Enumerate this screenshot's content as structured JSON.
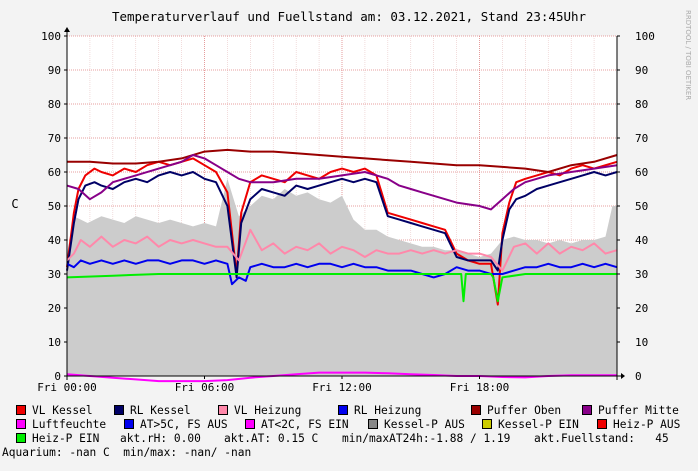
{
  "title": "Temperaturverlauf und Fuellstand am: 03.12.2021, Stand 23:45Uhr",
  "watermark": "RRDTOOL / TOBI OETIKER",
  "chart_data": {
    "type": "line",
    "ylabel": "C",
    "ylim": [
      0,
      100
    ],
    "yticks": [
      "0",
      "10",
      "20",
      "30",
      "40",
      "50",
      "60",
      "70",
      "80",
      "90",
      "100"
    ],
    "x_axis": "time (hours of 03.12.2021)",
    "xlim": [
      0,
      24
    ],
    "xticks": [
      {
        "t": 0,
        "label": "Fri 00:00"
      },
      {
        "t": 6,
        "label": "Fri 06:00"
      },
      {
        "t": 12,
        "label": "Fri 12:00"
      },
      {
        "t": 18,
        "label": "Fri 18:00"
      }
    ],
    "grid": true,
    "area": {
      "name": "Kessel-P AUS",
      "color": "#cccccc",
      "x": [
        0,
        0.3,
        0.6,
        0.9,
        1.2,
        1.5,
        2,
        2.5,
        3,
        3.5,
        4,
        4.5,
        5,
        5.5,
        6,
        6.5,
        7,
        7.5,
        8,
        8.5,
        9,
        9.5,
        10,
        10.5,
        11,
        11.5,
        12,
        12.5,
        13,
        13.5,
        14,
        14.5,
        15,
        15.5,
        16,
        16.5,
        17,
        17.5,
        18,
        18.5,
        19,
        19.5,
        20,
        20.5,
        21,
        21.5,
        22,
        22.5,
        23,
        23.5,
        23.8,
        24
      ],
      "values": [
        36,
        47,
        46,
        45,
        46,
        47,
        46,
        45,
        47,
        46,
        45,
        46,
        45,
        44,
        45,
        44,
        58,
        47,
        50,
        53,
        52,
        55,
        53,
        54,
        52,
        51,
        53,
        46,
        43,
        43,
        41,
        40,
        39,
        38,
        38,
        37,
        37,
        36,
        35,
        36,
        40,
        41,
        40,
        40,
        39,
        40,
        39,
        40,
        40,
        41,
        50,
        50
      ]
    },
    "series": [
      {
        "name": "VL Kessel",
        "color": "#ee0000",
        "x": [
          0,
          0.3,
          0.5,
          0.8,
          1.2,
          1.5,
          2,
          2.5,
          3,
          3.5,
          4,
          4.5,
          5,
          5.5,
          6,
          6.5,
          7,
          7.4,
          7.6,
          8,
          8.5,
          9,
          9.5,
          10,
          10.5,
          11,
          11.5,
          12,
          12.5,
          13,
          13.5,
          14,
          14.5,
          15,
          15.5,
          16,
          16.5,
          17,
          17.5,
          18,
          18.5,
          18.8,
          19,
          19.3,
          19.6,
          20,
          20.5,
          21,
          21.5,
          22,
          22.5,
          23,
          23.5,
          24
        ],
        "values": [
          32,
          48,
          55,
          59,
          61,
          60,
          59,
          61,
          60,
          62,
          63,
          62,
          63,
          64,
          62,
          60,
          54,
          30,
          48,
          57,
          59,
          58,
          57,
          60,
          59,
          58,
          60,
          61,
          60,
          61,
          59,
          48,
          47,
          46,
          45,
          44,
          43,
          36,
          34,
          33,
          33,
          21,
          42,
          51,
          57,
          58,
          59,
          60,
          59,
          61,
          62,
          61,
          62,
          63
        ]
      },
      {
        "name": "RL Kessel",
        "color": "#000066",
        "x": [
          0,
          0.3,
          0.5,
          0.8,
          1.2,
          1.5,
          2,
          2.5,
          3,
          3.5,
          4,
          4.5,
          5,
          5.5,
          6,
          6.5,
          7,
          7.4,
          7.6,
          8,
          8.5,
          9,
          9.5,
          10,
          10.5,
          11,
          11.5,
          12,
          12.5,
          13,
          13.5,
          14,
          14.5,
          15,
          15.5,
          16,
          16.5,
          17,
          17.5,
          18,
          18.5,
          18.8,
          19,
          19.3,
          19.6,
          20,
          20.5,
          21,
          21.5,
          22,
          22.5,
          23,
          23.5,
          24
        ],
        "values": [
          31,
          45,
          52,
          56,
          57,
          56,
          55,
          57,
          58,
          57,
          59,
          60,
          59,
          60,
          58,
          57,
          50,
          29,
          45,
          52,
          55,
          54,
          53,
          56,
          55,
          56,
          57,
          58,
          57,
          58,
          57,
          47,
          46,
          45,
          44,
          43,
          42,
          35,
          34,
          34,
          34,
          31,
          40,
          49,
          52,
          53,
          55,
          56,
          57,
          58,
          59,
          60,
          59,
          60
        ]
      },
      {
        "name": "VL Heizung",
        "color": "#ff88aa",
        "x": [
          0,
          0.3,
          0.6,
          1,
          1.5,
          2,
          2.5,
          3,
          3.5,
          4,
          4.5,
          5,
          5.5,
          6,
          6.5,
          7,
          7.5,
          8,
          8.5,
          9,
          9.5,
          10,
          10.5,
          11,
          11.5,
          12,
          12.5,
          13,
          13.5,
          14,
          14.5,
          15,
          15.5,
          16,
          16.5,
          17,
          17.5,
          18,
          18.5,
          19,
          19.5,
          20,
          20.5,
          21,
          21.5,
          22,
          22.5,
          23,
          23.5,
          24
        ],
        "values": [
          34,
          36,
          40,
          38,
          41,
          38,
          40,
          39,
          41,
          38,
          40,
          39,
          40,
          39,
          38,
          38,
          34,
          43,
          37,
          39,
          36,
          38,
          37,
          39,
          36,
          38,
          37,
          35,
          37,
          36,
          36,
          37,
          36,
          37,
          36,
          37,
          36,
          36,
          35,
          31,
          38,
          39,
          36,
          39,
          36,
          38,
          37,
          39,
          36,
          37
        ]
      },
      {
        "name": "RL Heizung",
        "color": "#0000ee",
        "x": [
          0,
          0.3,
          0.6,
          1,
          1.5,
          2,
          2.5,
          3,
          3.5,
          4,
          4.5,
          5,
          5.5,
          6,
          6.5,
          7,
          7.2,
          7.5,
          7.8,
          8,
          8.5,
          9,
          9.5,
          10,
          10.5,
          11,
          11.5,
          12,
          12.5,
          13,
          13.5,
          14,
          14.5,
          15,
          15.5,
          16,
          16.5,
          17,
          17.5,
          18,
          18.5,
          19,
          19.5,
          20,
          20.5,
          21,
          21.5,
          22,
          22.5,
          23,
          23.5,
          24
        ],
        "values": [
          33,
          32,
          34,
          33,
          34,
          33,
          34,
          33,
          34,
          34,
          33,
          34,
          34,
          33,
          34,
          33,
          27,
          29,
          28,
          32,
          33,
          32,
          32,
          33,
          32,
          33,
          33,
          32,
          33,
          32,
          32,
          31,
          31,
          31,
          30,
          29,
          30,
          32,
          31,
          31,
          30,
          30,
          31,
          32,
          32,
          33,
          32,
          32,
          33,
          32,
          33,
          32
        ]
      },
      {
        "name": "Puffer Oben",
        "color": "#990000",
        "x": [
          0,
          1,
          2,
          3,
          4,
          5,
          6,
          7,
          8,
          9,
          10,
          11,
          12,
          13,
          14,
          15,
          16,
          17,
          18,
          19,
          20,
          21,
          22,
          23,
          24
        ],
        "values": [
          63,
          63,
          62.5,
          62.5,
          63,
          64,
          66,
          66.5,
          66,
          66,
          65.5,
          65,
          64.5,
          64,
          63.5,
          63,
          62.5,
          62,
          62,
          61.5,
          61,
          60,
          62,
          63,
          65
        ]
      },
      {
        "name": "Puffer Mitte",
        "color": "#880088",
        "x": [
          0,
          0.5,
          1,
          1.5,
          2,
          3,
          4,
          5,
          5.5,
          6,
          6.5,
          7,
          7.5,
          8,
          9,
          10,
          11,
          12,
          13,
          13.5,
          14,
          14.5,
          15,
          15.5,
          16,
          17,
          18,
          18.5,
          19,
          19.5,
          20,
          20.5,
          21,
          22,
          23,
          24
        ],
        "values": [
          56,
          55,
          52,
          54,
          57,
          59,
          61,
          63,
          65,
          64,
          62,
          60,
          58,
          57,
          57,
          58,
          58,
          59,
          60,
          59,
          58,
          56,
          55,
          54,
          53,
          51,
          50,
          49,
          52,
          55,
          57,
          58,
          59,
          60,
          61,
          62
        ]
      },
      {
        "name": "Luftfeuchte",
        "color": "#ff00ff",
        "x": [
          0,
          1,
          2,
          3,
          4,
          5,
          6,
          7,
          8,
          9,
          10,
          11,
          12,
          13,
          14,
          15,
          16,
          17,
          18,
          19,
          20,
          21,
          22,
          23,
          24
        ],
        "values": [
          0.5,
          0,
          -0.5,
          -1,
          -1.5,
          -1.5,
          -1.5,
          -1.2,
          -0.5,
          0,
          0.5,
          1,
          1,
          1,
          0.8,
          0.5,
          0.3,
          0,
          0,
          -0.3,
          -0.4,
          0,
          0.2,
          0.2,
          0.2
        ]
      },
      {
        "name": "Heiz-P EIN",
        "color": "#00ee00",
        "x": [
          0,
          2,
          4,
          6,
          8,
          10,
          12,
          14,
          16.5,
          17.2,
          17.3,
          17.4,
          18.5,
          18.6,
          18.8,
          19,
          20,
          22,
          24
        ],
        "values": [
          29,
          29.5,
          30,
          30,
          30,
          30,
          30,
          30,
          30,
          30,
          22,
          30,
          30,
          29,
          22,
          29,
          30,
          30,
          30
        ]
      },
      {
        "name": "Zero",
        "color": "#000000",
        "x": [
          0,
          24
        ],
        "values": [
          0,
          0
        ]
      }
    ]
  },
  "legend": [
    {
      "label": "VL Kessel",
      "color": "#ee0000"
    },
    {
      "label": "RL Kessel",
      "color": "#000066"
    },
    {
      "label": "VL Heizung",
      "color": "#ff88aa"
    },
    {
      "label": "RL Heizung",
      "color": "#0000ee"
    },
    {
      "label": "Puffer Oben",
      "color": "#990000"
    },
    {
      "label": "Puffer Mitte",
      "color": "#880088"
    },
    {
      "label": "Luftfeuchte",
      "color": "#ff00ff"
    },
    {
      "label": "AT>5C, FS AUS",
      "color": "#0000ee"
    },
    {
      "label": "AT<2C, FS EIN",
      "color": "#ff00ff"
    },
    {
      "label": "Kessel-P AUS",
      "color": "#888888"
    },
    {
      "label": "Kessel-P EIN",
      "color": "#cccc00"
    },
    {
      "label": "Heiz-P AUS",
      "color": "#ee0000"
    },
    {
      "label": "Heiz-P EIN",
      "color": "#00ee00"
    }
  ],
  "stats": {
    "rh": "akt.rH: 0.00",
    "at": "akt.AT: 0.15 C",
    "minmax": "min/maxAT24h:-1.88 / 1.19",
    "fuellstand": "akt.Fuellstand:   45"
  },
  "aquarium": "Aquarium: -nan C  min/max: -nan/ -nan"
}
